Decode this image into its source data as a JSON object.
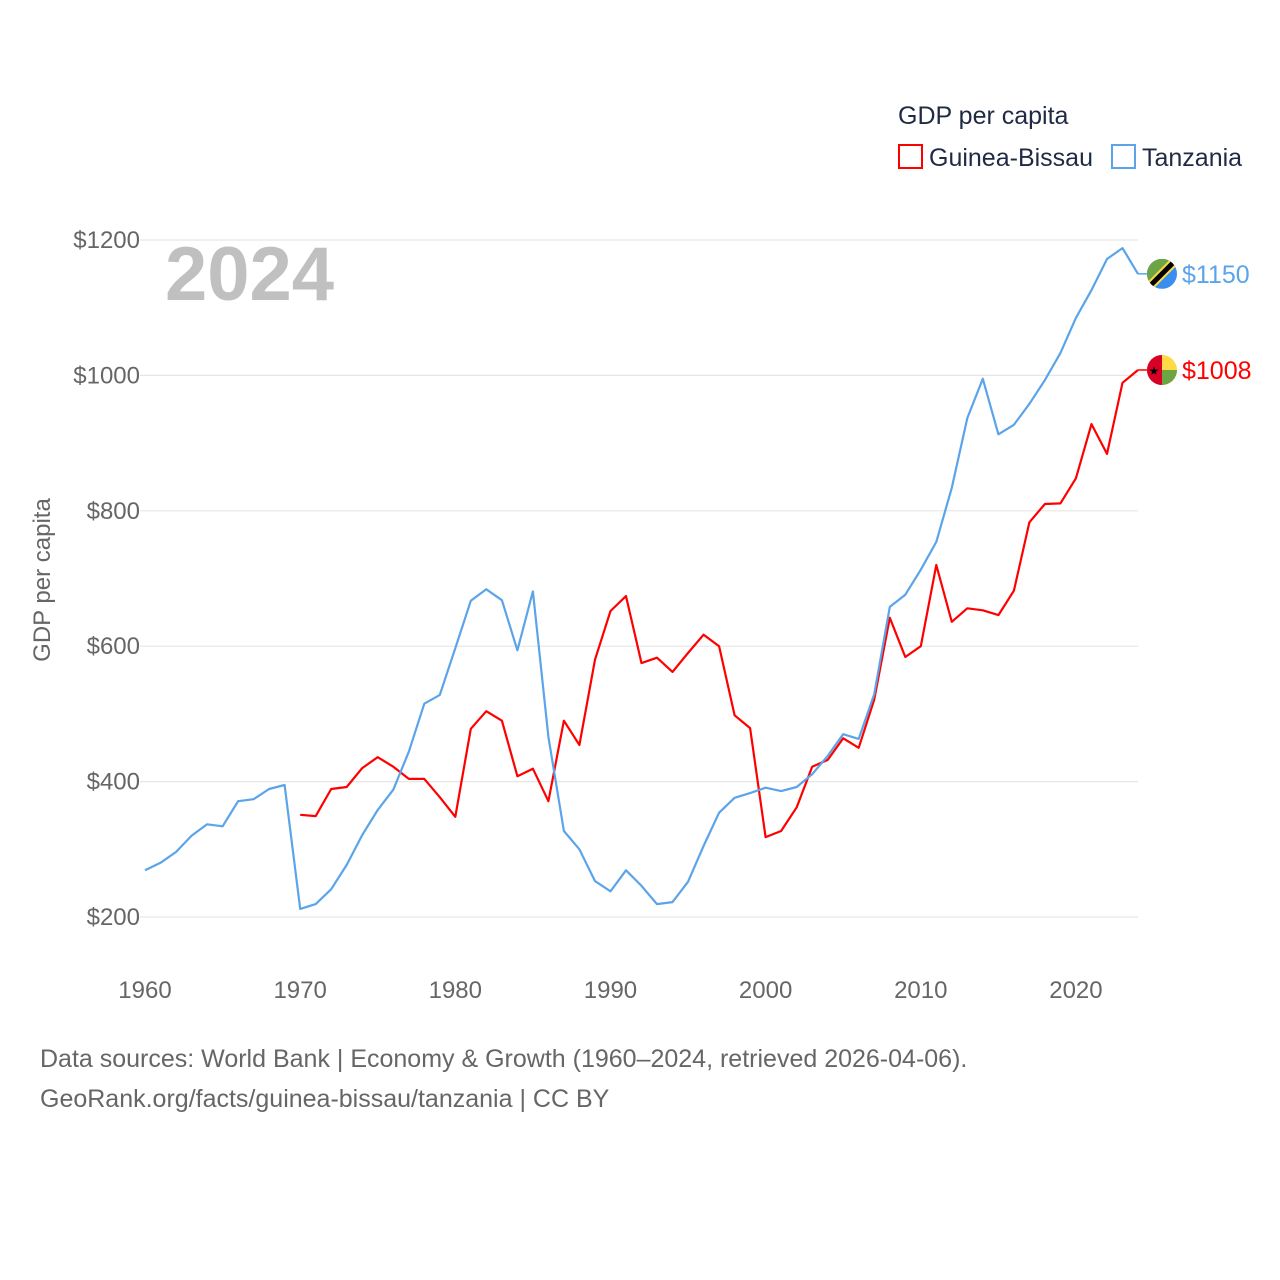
{
  "chart_data": {
    "type": "line",
    "title": "GDP per capita",
    "year_label": "2024",
    "ylabel": "GDP per capita",
    "xlabel": "",
    "xlim": [
      1960,
      2024
    ],
    "ylim": [
      200,
      1200
    ],
    "x_ticks": [
      1960,
      1970,
      1980,
      1990,
      2000,
      2010,
      2020
    ],
    "y_ticks": [
      200,
      400,
      600,
      800,
      1000,
      1200
    ],
    "y_tick_labels": [
      "$200",
      "$400",
      "$600",
      "$800",
      "$1000",
      "$1200"
    ],
    "grid": true,
    "legend_position": "top-right",
    "series": [
      {
        "name": "Guinea-Bissau",
        "color": "#ff0000",
        "end_label": "$1008",
        "flag": "guinea-bissau-flag",
        "start_year": 1970,
        "values": [
          351,
          349,
          389,
          392,
          420,
          436,
          422,
          404,
          404,
          377,
          348,
          478,
          504,
          490,
          408,
          419,
          371,
          490,
          454,
          580,
          652,
          674,
          575,
          583,
          562,
          590,
          617,
          600,
          498,
          479,
          318,
          327,
          362,
          422,
          432,
          464,
          450,
          521,
          642,
          584,
          600,
          720,
          636,
          656,
          653,
          646,
          682,
          783,
          810,
          811,
          848,
          928,
          884,
          989,
          1008
        ]
      },
      {
        "name": "Tanzania",
        "color": "#5ba4ea",
        "end_label": "$1150",
        "flag": "tanzania-flag",
        "start_year": 1960,
        "values": [
          269,
          280,
          296,
          320,
          337,
          334,
          371,
          374,
          389,
          395,
          212,
          219,
          241,
          277,
          321,
          358,
          388,
          444,
          515,
          528,
          597,
          667,
          684,
          668,
          594,
          681,
          466,
          327,
          300,
          253,
          238,
          269,
          246,
          219,
          222,
          252,
          305,
          354,
          376,
          383,
          391,
          386,
          392,
          411,
          438,
          470,
          463,
          529,
          658,
          676,
          713,
          754,
          834,
          937,
          995,
          913,
          927,
          958,
          993,
          1033,
          1085,
          1126,
          1172,
          1188,
          1150
        ]
      }
    ]
  },
  "footer": {
    "line1": "Data sources: World Bank | Economy & Growth (1960–2024, retrieved 2026-04-06).",
    "line2": "GeoRank.org/facts/guinea-bissau/tanzania | CC BY"
  }
}
